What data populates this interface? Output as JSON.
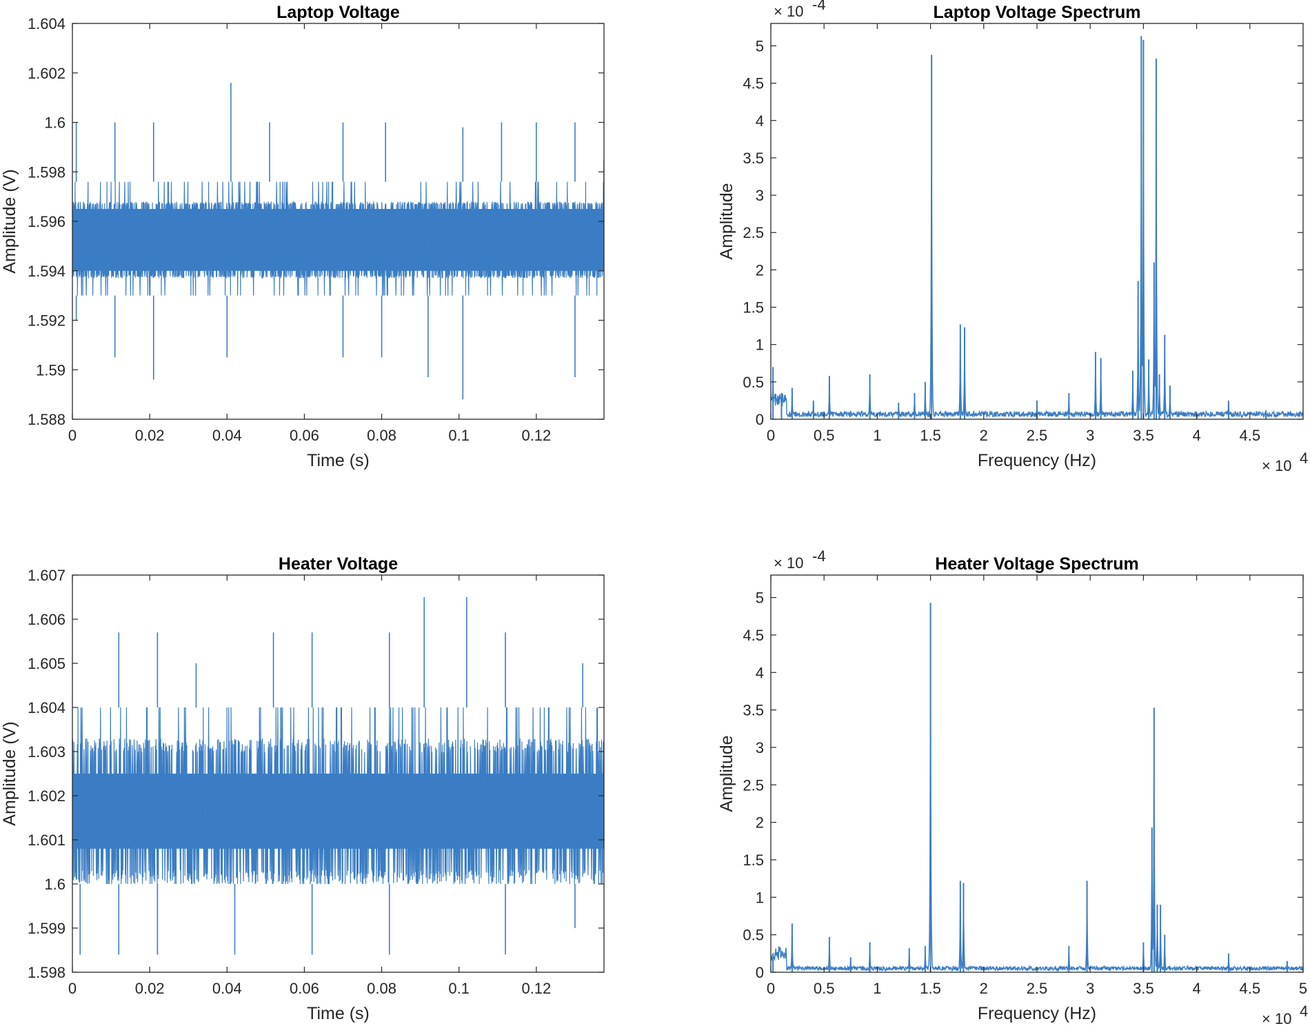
{
  "chart_data": [
    {
      "id": "laptop-voltage",
      "type": "line",
      "title": "Laptop Voltage",
      "xlabel": "Time (s)",
      "ylabel": "Amplitude (V)",
      "xlim": [
        0,
        0.1375
      ],
      "ylim": [
        1.588,
        1.604
      ],
      "xticks": [
        0,
        0.02,
        0.04,
        0.06,
        0.08,
        0.1,
        0.12
      ],
      "xtick_labels": [
        "0",
        "0.02",
        "0.04",
        "0.06",
        "0.08",
        "0.1",
        "0.12"
      ],
      "yticks": [
        1.588,
        1.59,
        1.592,
        1.594,
        1.596,
        1.598,
        1.6,
        1.602,
        1.604
      ],
      "ytick_labels": [
        "1.588",
        "1.59",
        "1.592",
        "1.594",
        "1.596",
        "1.598",
        "1.6",
        "1.602",
        "1.604"
      ],
      "color": "#3b7dc4",
      "signal": {
        "kind": "noise",
        "band_low": 1.5937,
        "band_high": 1.5968,
        "core_low": 1.594,
        "core_high": 1.5965,
        "burst_high": 1.5976,
        "burst_low": 1.593,
        "spikes_up": [
          [
            0.001,
            1.6
          ],
          [
            0.011,
            1.6
          ],
          [
            0.021,
            1.6
          ],
          [
            0.041,
            1.6016
          ],
          [
            0.051,
            1.6
          ],
          [
            0.07,
            1.6
          ],
          [
            0.081,
            1.6
          ],
          [
            0.101,
            1.5998
          ],
          [
            0.111,
            1.6
          ],
          [
            0.12,
            1.6
          ],
          [
            0.13,
            1.6
          ],
          [
            0.1375,
            1.5985
          ]
        ],
        "spikes_down": [
          [
            0.001,
            1.592
          ],
          [
            0.011,
            1.5905
          ],
          [
            0.021,
            1.5896
          ],
          [
            0.04,
            1.5905
          ],
          [
            0.07,
            1.5905
          ],
          [
            0.08,
            1.5905
          ],
          [
            0.092,
            1.5897
          ],
          [
            0.101,
            1.5888
          ],
          [
            0.13,
            1.5897
          ]
        ]
      }
    },
    {
      "id": "laptop-voltage-spectrum",
      "type": "line",
      "title": "Laptop Voltage Spectrum",
      "xlabel": "Frequency (Hz)",
      "ylabel": "Amplitude",
      "xlim": [
        0,
        50000
      ],
      "ylim": [
        0,
        5.3
      ],
      "y_multiplier": "× 10",
      "y_exponent": "-4",
      "x_multiplier": "× 10",
      "x_exponent": "4",
      "xticks": [
        0,
        0.5,
        1,
        1.5,
        2,
        2.5,
        3,
        3.5,
        4,
        4.5
      ],
      "xtick_labels": [
        "0",
        "0.5",
        "1",
        "1.5",
        "2",
        "2.5",
        "3",
        "3.5",
        "4",
        "4.5"
      ],
      "yticks": [
        0,
        0.5,
        1,
        1.5,
        2,
        2.5,
        3,
        3.5,
        4,
        4.5,
        5
      ],
      "ytick_labels": [
        "0",
        "0.5",
        "1",
        "1.5",
        "2",
        "2.5",
        "3",
        "3.5",
        "4",
        "4.5",
        "5"
      ],
      "color": "#3b7dc4",
      "signal": {
        "kind": "spectrum",
        "x_scale": 10000,
        "floor": 0.08,
        "peaks": [
          [
            0.02,
            0.7
          ],
          [
            0.1,
            0.35
          ],
          [
            0.2,
            0.42
          ],
          [
            0.4,
            0.25
          ],
          [
            0.55,
            0.58
          ],
          [
            0.93,
            0.6
          ],
          [
            1.2,
            0.22
          ],
          [
            1.35,
            0.35
          ],
          [
            1.45,
            0.5
          ],
          [
            1.51,
            4.88
          ],
          [
            1.78,
            1.27
          ],
          [
            1.82,
            1.23
          ],
          [
            2.5,
            0.25
          ],
          [
            2.8,
            0.35
          ],
          [
            3.05,
            0.9
          ],
          [
            3.1,
            0.82
          ],
          [
            3.4,
            0.65
          ],
          [
            3.45,
            1.85
          ],
          [
            3.48,
            5.13
          ],
          [
            3.5,
            5.08
          ],
          [
            3.55,
            0.8
          ],
          [
            3.6,
            2.1
          ],
          [
            3.62,
            4.83
          ],
          [
            3.65,
            0.6
          ],
          [
            3.7,
            1.13
          ],
          [
            3.75,
            0.45
          ],
          [
            4.3,
            0.25
          ],
          [
            4.65,
            0.12
          ]
        ]
      }
    },
    {
      "id": "heater-voltage",
      "type": "line",
      "title": "Heater Voltage",
      "xlabel": "Time (s)",
      "ylabel": "Amplitude (V)",
      "xlim": [
        0,
        0.1375
      ],
      "ylim": [
        1.598,
        1.607
      ],
      "xticks": [
        0,
        0.02,
        0.04,
        0.06,
        0.08,
        0.1,
        0.12
      ],
      "xtick_labels": [
        "0",
        "0.02",
        "0.04",
        "0.06",
        "0.08",
        "0.1",
        "0.12"
      ],
      "yticks": [
        1.598,
        1.599,
        1.6,
        1.601,
        1.602,
        1.603,
        1.604,
        1.605,
        1.606,
        1.607
      ],
      "ytick_labels": [
        "1.598",
        "1.599",
        "1.6",
        "1.601",
        "1.602",
        "1.603",
        "1.604",
        "1.605",
        "1.606",
        "1.607"
      ],
      "color": "#3b7dc4",
      "signal": {
        "kind": "noise",
        "band_low": 1.6,
        "band_high": 1.6033,
        "core_low": 1.6008,
        "core_high": 1.6025,
        "burst_high": 1.604,
        "burst_low": 1.6,
        "spikes_up": [
          [
            0.012,
            1.6057
          ],
          [
            0.022,
            1.6057
          ],
          [
            0.032,
            1.605
          ],
          [
            0.052,
            1.6057
          ],
          [
            0.062,
            1.6057
          ],
          [
            0.082,
            1.6057
          ],
          [
            0.091,
            1.6065
          ],
          [
            0.102,
            1.6065
          ],
          [
            0.112,
            1.6057
          ],
          [
            0.132,
            1.605
          ]
        ],
        "spikes_down": [
          [
            0.002,
            1.5984
          ],
          [
            0.012,
            1.5984
          ],
          [
            0.022,
            1.5984
          ],
          [
            0.042,
            1.5984
          ],
          [
            0.062,
            1.5984
          ],
          [
            0.082,
            1.5984
          ],
          [
            0.112,
            1.5984
          ],
          [
            0.13,
            1.599
          ]
        ]
      }
    },
    {
      "id": "heater-voltage-spectrum",
      "type": "line",
      "title": "Heater Voltage Spectrum",
      "xlabel": "Frequency (Hz)",
      "ylabel": "Amplitude",
      "xlim": [
        0,
        50000
      ],
      "ylim": [
        0,
        5.3
      ],
      "y_multiplier": "× 10",
      "y_exponent": "-4",
      "x_multiplier": "× 10",
      "x_exponent": "4",
      "xticks": [
        0,
        0.5,
        1,
        1.5,
        2,
        2.5,
        3,
        3.5,
        4,
        4.5,
        5
      ],
      "xtick_labels": [
        "0",
        "0.5",
        "1",
        "1.5",
        "2",
        "2.5",
        "3",
        "3.5",
        "4",
        "4.5",
        "5"
      ],
      "yticks": [
        0,
        0.5,
        1,
        1.5,
        2,
        2.5,
        3,
        3.5,
        4,
        4.5,
        5
      ],
      "ytick_labels": [
        "0",
        "0.5",
        "1",
        "1.5",
        "2",
        "2.5",
        "3",
        "3.5",
        "4",
        "4.5",
        "5"
      ],
      "color": "#3b7dc4",
      "signal": {
        "kind": "spectrum",
        "x_scale": 10000,
        "floor": 0.06,
        "peaks": [
          [
            0.02,
            0.2
          ],
          [
            0.2,
            0.65
          ],
          [
            0.55,
            0.47
          ],
          [
            0.75,
            0.2
          ],
          [
            0.93,
            0.4
          ],
          [
            1.3,
            0.32
          ],
          [
            1.45,
            0.35
          ],
          [
            1.5,
            4.93
          ],
          [
            1.78,
            1.22
          ],
          [
            1.81,
            1.19
          ],
          [
            2.8,
            0.35
          ],
          [
            2.97,
            1.22
          ],
          [
            3.5,
            0.4
          ],
          [
            3.58,
            1.93
          ],
          [
            3.6,
            3.53
          ],
          [
            3.63,
            0.9
          ],
          [
            3.66,
            0.9
          ],
          [
            3.7,
            0.5
          ],
          [
            4.3,
            0.25
          ],
          [
            4.85,
            0.15
          ]
        ]
      }
    }
  ]
}
